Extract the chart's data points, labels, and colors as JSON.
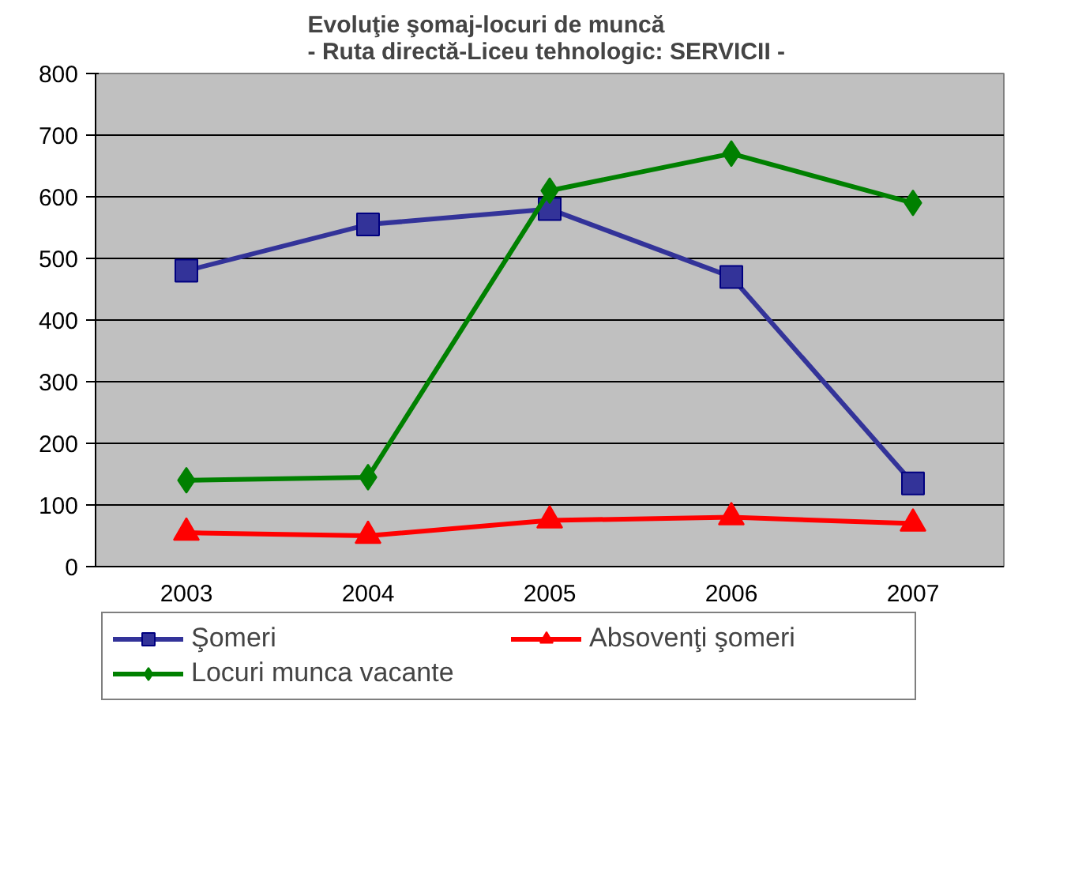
{
  "chart_data": {
    "type": "line",
    "title": "Evoluţie şomaj-locuri de muncă\n - Ruta directă-Liceu tehnologic: SERVICII -",
    "categories": [
      "2003",
      "2004",
      "2005",
      "2006",
      "2007"
    ],
    "series": [
      {
        "name": "Şomeri",
        "color": "#333399",
        "marker": "square",
        "values": [
          480,
          555,
          580,
          470,
          135
        ]
      },
      {
        "name": "Absovenţi şomeri",
        "color": "#ff0000",
        "marker": "triangle",
        "values": [
          55,
          50,
          75,
          80,
          70
        ]
      },
      {
        "name": "Locuri munca vacante",
        "color": "#008000",
        "marker": "diamond",
        "values": [
          140,
          145,
          610,
          670,
          590
        ]
      }
    ],
    "ylim": [
      0,
      800
    ],
    "yticks": [
      0,
      100,
      200,
      300,
      400,
      500,
      600,
      700,
      800
    ],
    "grid": "y",
    "legend": "bottom"
  }
}
